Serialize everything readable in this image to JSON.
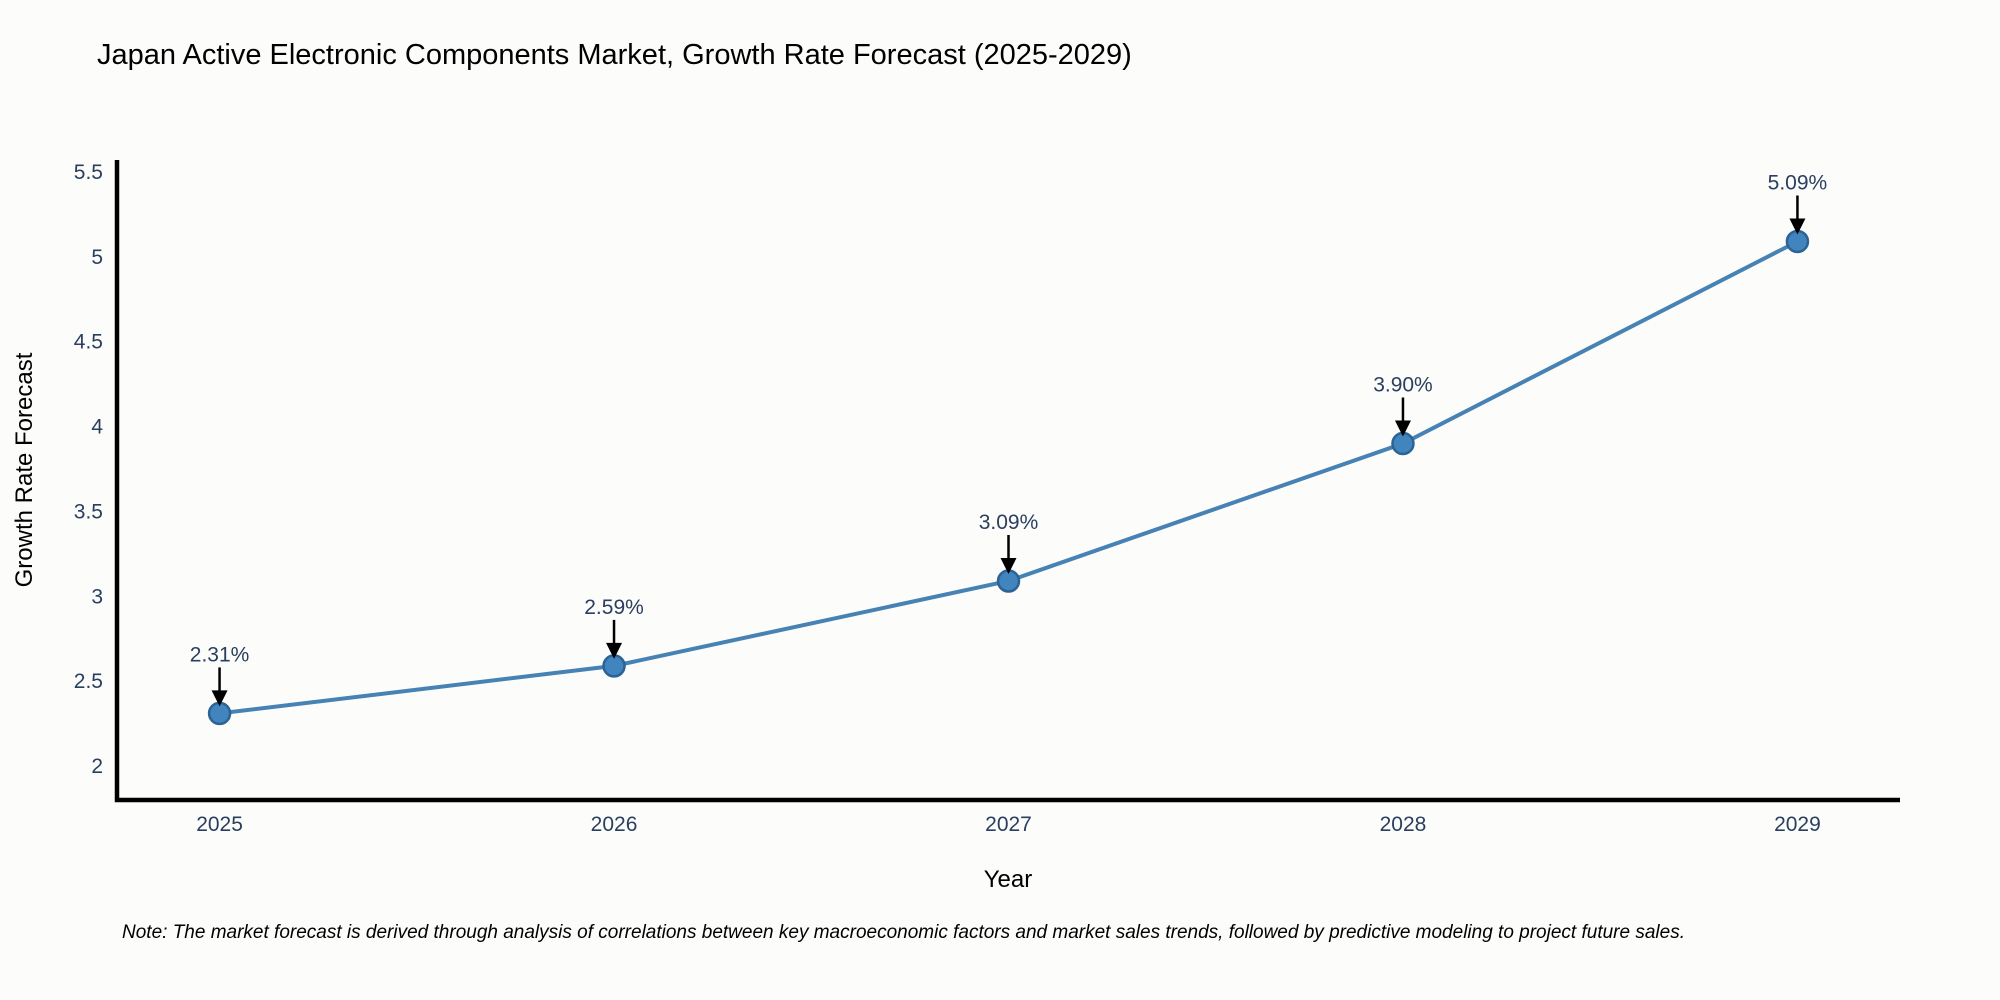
{
  "title": "Japan Active Electronic Components Market, Growth Rate Forecast (2025-2029)",
  "note": "Note: The market forecast is derived through analysis of correlations between key macroeconomic factors and market sales trends, followed by predictive modeling to project future sales.",
  "colors": {
    "text": "#2a3f5f",
    "axis_line": "#000000",
    "series_line": "#4682b4",
    "marker_fill": "#4284bd",
    "marker_edge": "#2b6394",
    "arrow": "#000000",
    "background": "#fcfcfa"
  },
  "chart_data": {
    "type": "line",
    "title": "Japan Active Electronic Components Market, Growth Rate Forecast (2025-2029)",
    "xlabel": "Year",
    "ylabel": "Growth Rate Forecast",
    "x": [
      2025,
      2026,
      2027,
      2028,
      2029
    ],
    "values": [
      2.31,
      2.59,
      3.09,
      3.9,
      5.09
    ],
    "point_labels": [
      "2.31%",
      "2.59%",
      "3.09%",
      "3.90%",
      "5.09%"
    ],
    "xticks": [
      2025,
      2026,
      2027,
      2028,
      2029
    ],
    "xtick_labels": [
      "2025",
      "2026",
      "2027",
      "2028",
      "2029"
    ],
    "yticks": [
      2,
      2.5,
      3,
      3.5,
      4,
      4.5,
      5,
      5.5
    ],
    "ytick_labels": [
      "2",
      "2.5",
      "3",
      "3.5",
      "4",
      "4.5",
      "5",
      "5.5"
    ],
    "xlim": [
      2024.74,
      2029.26
    ],
    "ylim": [
      1.8,
      5.57
    ],
    "grid": false,
    "legend_position": "none",
    "annotations_have_arrows": true
  }
}
